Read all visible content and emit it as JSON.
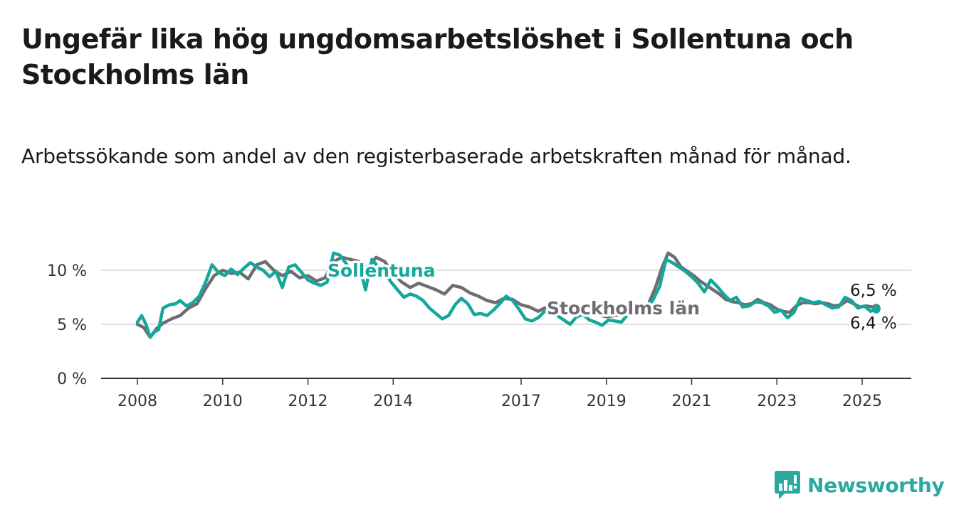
{
  "title": "Ungefär lika hög ungdomsarbetslöshet i Sollentuna och Stockholms län",
  "subtitle": "Arbetssökande som andel av den registerbaserade arbetskraften månad för månad.",
  "brand": {
    "name": "Newsworthy",
    "icon": "newsworthy-logo-icon"
  },
  "colors": {
    "sollentuna": "#14a89b",
    "stockholm": "#6e6d72",
    "grid": "#d6d6d6",
    "axis": "#333333"
  },
  "chart_data": {
    "type": "line",
    "title": "Ungefär lika hög ungdomsarbetslöshet i Sollentuna och Stockholms län",
    "subtitle": "Arbetssökande som andel av den registerbaserade arbetskraften månad för månad.",
    "xlabel": "",
    "ylabel": "",
    "xlim": [
      2007.2,
      2026.2
    ],
    "ylim": [
      0,
      10
    ],
    "y_ticks": [
      {
        "value": 0,
        "label": "0 %"
      },
      {
        "value": 5,
        "label": "5 %"
      },
      {
        "value": 10,
        "label": "10 %"
      }
    ],
    "x_ticks": [
      {
        "value": 2008,
        "label": "2008"
      },
      {
        "value": 2010,
        "label": "2010"
      },
      {
        "value": 2012,
        "label": "2012"
      },
      {
        "value": 2014,
        "label": "2014"
      },
      {
        "value": 2017,
        "label": "2017"
      },
      {
        "value": 2019,
        "label": "2019"
      },
      {
        "value": 2021,
        "label": "2021"
      },
      {
        "value": 2023,
        "label": "2023"
      },
      {
        "value": 2025,
        "label": "2025"
      }
    ],
    "grid": true,
    "legend": "inline labels",
    "series": [
      {
        "name": "Stockholms län",
        "color": "#6e6d72",
        "label": "Stockholms län",
        "end_label": "6,5 %",
        "points": [
          [
            2008.0,
            5.0
          ],
          [
            2008.15,
            4.7
          ],
          [
            2008.3,
            3.8
          ],
          [
            2008.45,
            4.6
          ],
          [
            2008.6,
            5.1
          ],
          [
            2008.8,
            5.5
          ],
          [
            2009.0,
            5.8
          ],
          [
            2009.2,
            6.5
          ],
          [
            2009.4,
            6.9
          ],
          [
            2009.6,
            8.3
          ],
          [
            2009.8,
            9.5
          ],
          [
            2010.0,
            10.0
          ],
          [
            2010.2,
            9.7
          ],
          [
            2010.4,
            9.8
          ],
          [
            2010.6,
            9.2
          ],
          [
            2010.8,
            10.5
          ],
          [
            2011.0,
            10.8
          ],
          [
            2011.2,
            10.0
          ],
          [
            2011.4,
            9.5
          ],
          [
            2011.6,
            9.9
          ],
          [
            2011.8,
            9.3
          ],
          [
            2012.0,
            9.5
          ],
          [
            2012.2,
            9.0
          ],
          [
            2012.4,
            9.3
          ],
          [
            2012.6,
            10.8
          ],
          [
            2012.8,
            11.2
          ],
          [
            2013.0,
            11.0
          ],
          [
            2013.2,
            10.8
          ],
          [
            2013.4,
            10.2
          ],
          [
            2013.6,
            11.2
          ],
          [
            2013.8,
            10.8
          ],
          [
            2014.0,
            9.7
          ],
          [
            2014.2,
            8.9
          ],
          [
            2014.4,
            8.4
          ],
          [
            2014.6,
            8.8
          ],
          [
            2014.8,
            8.5
          ],
          [
            2015.0,
            8.2
          ],
          [
            2015.2,
            7.8
          ],
          [
            2015.4,
            8.6
          ],
          [
            2015.6,
            8.4
          ],
          [
            2015.8,
            7.9
          ],
          [
            2016.0,
            7.6
          ],
          [
            2016.2,
            7.2
          ],
          [
            2016.4,
            7.0
          ],
          [
            2016.6,
            7.4
          ],
          [
            2016.8,
            7.3
          ],
          [
            2017.0,
            6.8
          ],
          [
            2017.2,
            6.6
          ],
          [
            2017.4,
            6.2
          ],
          [
            2017.6,
            6.6
          ]
        ]
      },
      {
        "name": "Sollentuna",
        "color": "#14a89b",
        "label": "Sollentuna",
        "end_label": "6,4 %",
        "points": [
          [
            2008.0,
            5.2
          ],
          [
            2008.1,
            5.8
          ],
          [
            2008.2,
            5.0
          ],
          [
            2008.3,
            3.8
          ],
          [
            2008.4,
            4.3
          ],
          [
            2008.5,
            4.5
          ],
          [
            2008.6,
            6.5
          ],
          [
            2008.75,
            6.8
          ],
          [
            2008.9,
            6.9
          ],
          [
            2009.0,
            7.2
          ],
          [
            2009.15,
            6.7
          ],
          [
            2009.3,
            7.0
          ],
          [
            2009.45,
            7.6
          ],
          [
            2009.6,
            8.9
          ],
          [
            2009.75,
            10.5
          ],
          [
            2009.9,
            9.8
          ],
          [
            2010.05,
            9.5
          ],
          [
            2010.2,
            10.1
          ],
          [
            2010.35,
            9.6
          ],
          [
            2010.5,
            10.2
          ],
          [
            2010.65,
            10.7
          ],
          [
            2010.8,
            10.3
          ],
          [
            2010.95,
            10.0
          ],
          [
            2011.1,
            9.4
          ],
          [
            2011.25,
            9.9
          ],
          [
            2011.4,
            8.4
          ],
          [
            2011.55,
            10.3
          ],
          [
            2011.7,
            10.5
          ],
          [
            2011.85,
            9.8
          ],
          [
            2012.0,
            9.1
          ],
          [
            2012.15,
            8.8
          ],
          [
            2012.3,
            8.6
          ],
          [
            2012.45,
            8.9
          ],
          [
            2012.6,
            11.6
          ],
          [
            2012.75,
            11.4
          ],
          [
            2012.9,
            10.6
          ],
          [
            2013.05,
            9.8
          ],
          [
            2013.2,
            10.5
          ],
          [
            2013.35,
            8.2
          ],
          [
            2013.5,
            11.0
          ],
          [
            2013.65,
            10.3
          ],
          [
            2013.8,
            9.8
          ],
          [
            2013.95,
            8.9
          ],
          [
            2014.1,
            8.2
          ],
          [
            2014.25,
            7.5
          ],
          [
            2014.4,
            7.8
          ],
          [
            2014.55,
            7.6
          ],
          [
            2014.7,
            7.2
          ],
          [
            2014.85,
            6.5
          ],
          [
            2015.0,
            6.0
          ],
          [
            2015.15,
            5.5
          ],
          [
            2015.3,
            5.8
          ],
          [
            2015.45,
            6.8
          ],
          [
            2015.6,
            7.4
          ],
          [
            2015.75,
            6.9
          ],
          [
            2015.9,
            5.9
          ],
          [
            2016.05,
            6.0
          ],
          [
            2016.2,
            5.8
          ],
          [
            2016.35,
            6.3
          ],
          [
            2016.5,
            6.9
          ],
          [
            2016.65,
            7.6
          ],
          [
            2016.8,
            7.2
          ],
          [
            2016.95,
            6.4
          ],
          [
            2017.1,
            5.5
          ],
          [
            2017.25,
            5.3
          ],
          [
            2017.4,
            5.6
          ],
          [
            2017.55,
            6.2
          ],
          [
            2017.7,
            6.0
          ],
          [
            2017.85,
            5.8
          ],
          [
            2018.0,
            5.4
          ],
          [
            2018.15,
            5.0
          ],
          [
            2018.3,
            5.7
          ],
          [
            2018.45,
            5.9
          ],
          [
            2018.6,
            5.4
          ],
          [
            2018.75,
            5.2
          ],
          [
            2018.9,
            4.9
          ],
          [
            2019.05,
            5.4
          ],
          [
            2019.2,
            5.3
          ],
          [
            2019.35,
            5.2
          ],
          [
            2019.5,
            5.9
          ],
          [
            2019.65,
            6.0
          ],
          [
            2019.8,
            6.2
          ],
          [
            2019.95,
            6.5
          ],
          [
            2020.1,
            7.3
          ],
          [
            2020.25,
            8.5
          ],
          [
            2020.4,
            11.0
          ],
          [
            2020.55,
            10.7
          ],
          [
            2020.7,
            10.3
          ],
          [
            2020.85,
            9.9
          ],
          [
            2021.0,
            9.4
          ],
          [
            2021.15,
            8.8
          ],
          [
            2021.3,
            8.0
          ],
          [
            2021.45,
            9.1
          ],
          [
            2021.6,
            8.5
          ],
          [
            2021.75,
            7.8
          ],
          [
            2021.9,
            7.2
          ],
          [
            2022.05,
            7.5
          ],
          [
            2022.2,
            6.6
          ],
          [
            2022.35,
            6.7
          ],
          [
            2022.5,
            7.1
          ],
          [
            2022.65,
            7.0
          ],
          [
            2022.8,
            6.7
          ],
          [
            2022.95,
            6.1
          ],
          [
            2023.1,
            6.3
          ],
          [
            2023.25,
            5.6
          ],
          [
            2023.4,
            6.1
          ],
          [
            2023.55,
            7.4
          ],
          [
            2023.7,
            7.2
          ],
          [
            2023.85,
            7.0
          ],
          [
            2024.0,
            7.1
          ],
          [
            2024.15,
            6.8
          ],
          [
            2024.3,
            6.5
          ],
          [
            2024.45,
            6.6
          ],
          [
            2024.6,
            7.5
          ],
          [
            2024.75,
            7.2
          ],
          [
            2024.9,
            6.5
          ],
          [
            2025.05,
            6.7
          ],
          [
            2025.2,
            6.2
          ],
          [
            2025.33,
            6.4
          ]
        ]
      }
    ],
    "stockholm_tail": [
      [
        2017.6,
        6.6
      ],
      [
        2017.8,
        6.4
      ],
      [
        2018.0,
        6.1
      ],
      [
        2018.2,
        6.3
      ],
      [
        2018.4,
        6.0
      ],
      [
        2018.6,
        5.9
      ],
      [
        2018.8,
        5.9
      ],
      [
        2019.0,
        5.7
      ],
      [
        2019.2,
        5.8
      ],
      [
        2019.4,
        5.9
      ],
      [
        2019.6,
        6.1
      ],
      [
        2019.8,
        6.5
      ],
      [
        2020.0,
        7.0
      ],
      [
        2020.15,
        8.4
      ],
      [
        2020.3,
        10.2
      ],
      [
        2020.45,
        11.6
      ],
      [
        2020.6,
        11.2
      ],
      [
        2020.75,
        10.3
      ],
      [
        2020.9,
        9.9
      ],
      [
        2021.05,
        9.5
      ],
      [
        2021.2,
        9.0
      ],
      [
        2021.35,
        8.6
      ],
      [
        2021.5,
        8.2
      ],
      [
        2021.65,
        7.8
      ],
      [
        2021.8,
        7.3
      ],
      [
        2021.95,
        7.1
      ],
      [
        2022.1,
        7.0
      ],
      [
        2022.25,
        6.8
      ],
      [
        2022.4,
        6.9
      ],
      [
        2022.55,
        7.3
      ],
      [
        2022.7,
        7.0
      ],
      [
        2022.85,
        6.8
      ],
      [
        2023.0,
        6.4
      ],
      [
        2023.15,
        6.2
      ],
      [
        2023.3,
        6.1
      ],
      [
        2023.45,
        6.7
      ],
      [
        2023.6,
        7.0
      ],
      [
        2023.75,
        7.0
      ],
      [
        2023.9,
        6.9
      ],
      [
        2024.05,
        7.0
      ],
      [
        2024.2,
        6.9
      ],
      [
        2024.35,
        6.7
      ],
      [
        2024.5,
        6.8
      ],
      [
        2024.65,
        7.2
      ],
      [
        2024.8,
        6.9
      ],
      [
        2024.95,
        6.6
      ],
      [
        2025.1,
        6.7
      ],
      [
        2025.25,
        6.6
      ],
      [
        2025.33,
        6.5
      ]
    ]
  }
}
